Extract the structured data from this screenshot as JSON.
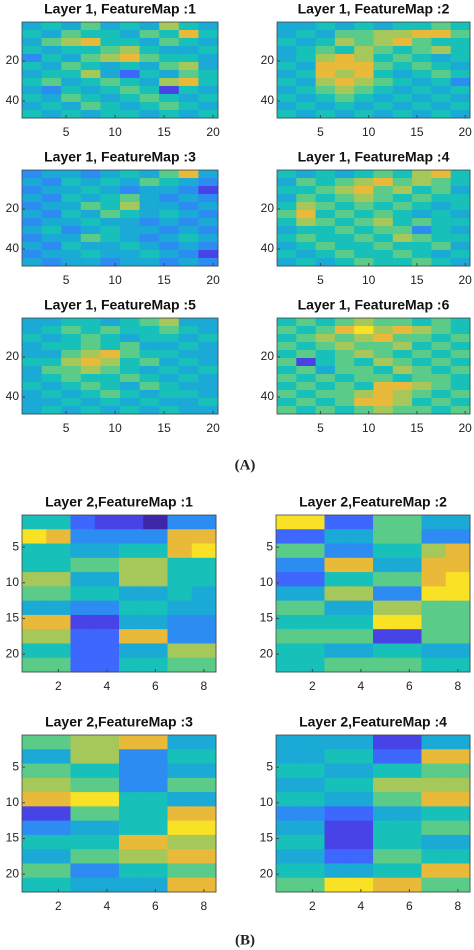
{
  "colormap": [
    "#3e26a8",
    "#4743e6",
    "#3e67fe",
    "#2d8cf2",
    "#1ba9d6",
    "#17c0b8",
    "#5acb89",
    "#a6c75a",
    "#e9ba3a",
    "#f9e125"
  ],
  "figure_labels": [
    "(A)",
    "(B)"
  ],
  "chart_data": [
    {
      "type": "heatmap",
      "title": "Layer 1, FeatureMap :1",
      "xlim": [
        0.5,
        20.5
      ],
      "ylim": [
        0.5,
        48.5
      ],
      "xticks": [
        5,
        10,
        15,
        20
      ],
      "yticks": [
        20,
        40
      ],
      "z": [
        [
          4,
          5,
          4,
          6,
          4,
          5,
          4,
          7,
          5,
          4
        ],
        [
          5,
          4,
          6,
          5,
          5,
          4,
          6,
          5,
          8,
          5
        ],
        [
          4,
          6,
          7,
          8,
          5,
          5,
          4,
          6,
          5,
          4
        ],
        [
          5,
          4,
          5,
          5,
          6,
          7,
          5,
          4,
          4,
          5
        ],
        [
          3,
          5,
          4,
          6,
          7,
          8,
          6,
          5,
          5,
          4
        ],
        [
          5,
          4,
          6,
          5,
          4,
          5,
          4,
          6,
          7,
          4
        ],
        [
          4,
          5,
          5,
          7,
          4,
          2,
          5,
          4,
          6,
          5
        ],
        [
          5,
          6,
          4,
          5,
          6,
          5,
          4,
          7,
          8,
          5
        ],
        [
          4,
          3,
          5,
          4,
          5,
          6,
          5,
          1,
          5,
          4
        ],
        [
          5,
          4,
          6,
          5,
          4,
          5,
          6,
          5,
          4,
          5
        ],
        [
          4,
          5,
          4,
          6,
          5,
          4,
          5,
          6,
          5,
          4
        ],
        [
          5,
          4,
          5,
          4,
          5,
          5,
          4,
          5,
          4,
          5
        ]
      ]
    },
    {
      "type": "heatmap",
      "title": "Layer 1, FeatureMap :2",
      "xlim": [
        0.5,
        20.5
      ],
      "ylim": [
        0.5,
        48.5
      ],
      "xticks": [
        5,
        10,
        15,
        20
      ],
      "yticks": [
        20,
        40
      ],
      "z": [
        [
          4,
          4,
          5,
          4,
          5,
          4,
          5,
          5,
          6,
          5
        ],
        [
          4,
          5,
          4,
          6,
          6,
          7,
          7,
          8,
          8,
          6
        ],
        [
          5,
          4,
          5,
          7,
          6,
          7,
          8,
          6,
          5,
          5
        ],
        [
          4,
          5,
          6,
          5,
          7,
          6,
          5,
          6,
          7,
          5
        ],
        [
          4,
          5,
          7,
          8,
          7,
          5,
          6,
          5,
          4,
          5
        ],
        [
          5,
          4,
          8,
          8,
          8,
          6,
          5,
          6,
          5,
          4
        ],
        [
          4,
          5,
          8,
          7,
          8,
          5,
          4,
          5,
          6,
          5
        ],
        [
          5,
          4,
          7,
          8,
          7,
          6,
          5,
          4,
          5,
          3
        ],
        [
          4,
          5,
          6,
          7,
          6,
          5,
          4,
          5,
          4,
          5
        ],
        [
          5,
          4,
          5,
          6,
          5,
          4,
          5,
          4,
          5,
          4
        ],
        [
          4,
          5,
          4,
          5,
          4,
          5,
          4,
          5,
          4,
          5
        ],
        [
          5,
          4,
          5,
          4,
          5,
          4,
          5,
          4,
          5,
          4
        ]
      ]
    },
    {
      "type": "heatmap",
      "title": "Layer 1, FeatureMap :3",
      "xlim": [
        0.5,
        20.5
      ],
      "ylim": [
        0.5,
        48.5
      ],
      "xticks": [
        5,
        10,
        15,
        20
      ],
      "yticks": [
        20,
        40
      ],
      "z": [
        [
          3,
          4,
          4,
          3,
          4,
          5,
          4,
          6,
          8,
          4
        ],
        [
          4,
          3,
          5,
          4,
          5,
          4,
          6,
          5,
          4,
          3
        ],
        [
          3,
          4,
          4,
          5,
          4,
          3,
          4,
          4,
          3,
          1
        ],
        [
          4,
          3,
          5,
          4,
          5,
          6,
          4,
          3,
          4,
          3
        ],
        [
          3,
          4,
          4,
          6,
          5,
          7,
          4,
          4,
          3,
          4
        ],
        [
          4,
          3,
          5,
          4,
          6,
          5,
          4,
          5,
          4,
          3
        ],
        [
          3,
          4,
          4,
          5,
          4,
          4,
          3,
          4,
          3,
          4
        ],
        [
          4,
          5,
          3,
          4,
          5,
          4,
          4,
          3,
          4,
          3
        ],
        [
          3,
          4,
          4,
          6,
          5,
          4,
          3,
          4,
          5,
          4
        ],
        [
          4,
          3,
          5,
          4,
          4,
          5,
          4,
          3,
          4,
          3
        ],
        [
          3,
          4,
          4,
          5,
          4,
          4,
          5,
          4,
          3,
          1
        ],
        [
          4,
          3,
          4,
          4,
          3,
          4,
          4,
          3,
          4,
          3
        ]
      ]
    },
    {
      "type": "heatmap",
      "title": "Layer 1, FeatureMap :4",
      "xlim": [
        0.5,
        20.5
      ],
      "ylim": [
        0.5,
        48.5
      ],
      "xticks": [
        5,
        10,
        15,
        20
      ],
      "yticks": [
        20,
        40
      ],
      "z": [
        [
          5,
          4,
          5,
          4,
          5,
          6,
          5,
          7,
          8,
          5
        ],
        [
          4,
          6,
          5,
          6,
          7,
          8,
          6,
          7,
          6,
          5
        ],
        [
          5,
          5,
          6,
          7,
          8,
          6,
          7,
          5,
          6,
          4
        ],
        [
          4,
          6,
          5,
          6,
          7,
          6,
          5,
          6,
          5,
          5
        ],
        [
          5,
          7,
          6,
          5,
          6,
          5,
          6,
          5,
          4,
          5
        ],
        [
          6,
          8,
          5,
          6,
          5,
          6,
          5,
          4,
          5,
          4
        ],
        [
          5,
          7,
          6,
          5,
          6,
          7,
          5,
          6,
          5,
          5
        ],
        [
          4,
          5,
          5,
          6,
          5,
          6,
          6,
          3,
          5,
          4
        ],
        [
          5,
          6,
          5,
          5,
          6,
          5,
          7,
          6,
          5,
          5
        ],
        [
          4,
          5,
          6,
          5,
          5,
          6,
          5,
          5,
          6,
          4
        ],
        [
          5,
          4,
          5,
          6,
          5,
          5,
          6,
          5,
          4,
          5
        ],
        [
          4,
          5,
          4,
          5,
          6,
          5,
          5,
          6,
          5,
          4
        ]
      ]
    },
    {
      "type": "heatmap",
      "title": "Layer 1, FeatureMap :5",
      "xlim": [
        0.5,
        20.5
      ],
      "ylim": [
        0.5,
        48.5
      ],
      "xticks": [
        5,
        10,
        15,
        20
      ],
      "yticks": [
        20,
        40
      ],
      "z": [
        [
          4,
          4,
          5,
          5,
          4,
          5,
          6,
          7,
          4,
          4
        ],
        [
          4,
          5,
          6,
          5,
          6,
          5,
          5,
          6,
          5,
          4
        ],
        [
          5,
          4,
          5,
          6,
          5,
          4,
          5,
          5,
          4,
          5
        ],
        [
          4,
          5,
          5,
          6,
          5,
          6,
          4,
          4,
          5,
          4
        ],
        [
          4,
          4,
          6,
          7,
          8,
          6,
          5,
          5,
          4,
          4
        ],
        [
          5,
          5,
          7,
          8,
          7,
          5,
          6,
          4,
          5,
          4
        ],
        [
          4,
          6,
          6,
          7,
          6,
          5,
          4,
          5,
          4,
          5
        ],
        [
          4,
          5,
          6,
          5,
          5,
          6,
          5,
          4,
          5,
          4
        ],
        [
          5,
          4,
          5,
          6,
          5,
          4,
          6,
          5,
          4,
          4
        ],
        [
          4,
          5,
          4,
          5,
          6,
          5,
          4,
          5,
          5,
          4
        ],
        [
          4,
          4,
          5,
          4,
          5,
          4,
          5,
          4,
          4,
          5
        ],
        [
          4,
          5,
          4,
          5,
          4,
          5,
          4,
          5,
          4,
          4
        ]
      ]
    },
    {
      "type": "heatmap",
      "title": "Layer 1, FeatureMap :6",
      "xlim": [
        0.5,
        20.5
      ],
      "ylim": [
        0.5,
        48.5
      ],
      "xticks": [
        5,
        10,
        15,
        20
      ],
      "yticks": [
        20,
        40
      ],
      "z": [
        [
          5,
          6,
          5,
          6,
          7,
          6,
          6,
          5,
          6,
          5
        ],
        [
          6,
          5,
          6,
          8,
          9,
          7,
          8,
          7,
          6,
          5
        ],
        [
          5,
          6,
          7,
          6,
          7,
          8,
          6,
          6,
          5,
          6
        ],
        [
          6,
          5,
          6,
          7,
          6,
          6,
          7,
          5,
          6,
          5
        ],
        [
          5,
          6,
          5,
          6,
          7,
          6,
          5,
          6,
          5,
          6
        ],
        [
          6,
          1,
          5,
          6,
          5,
          7,
          6,
          5,
          6,
          5
        ],
        [
          5,
          6,
          4,
          6,
          6,
          5,
          7,
          6,
          5,
          6
        ],
        [
          6,
          5,
          6,
          5,
          6,
          6,
          5,
          6,
          6,
          5
        ],
        [
          5,
          6,
          5,
          6,
          5,
          8,
          8,
          7,
          6,
          5
        ],
        [
          6,
          5,
          6,
          6,
          7,
          8,
          7,
          6,
          5,
          6
        ],
        [
          5,
          6,
          5,
          6,
          8,
          8,
          7,
          5,
          6,
          5
        ],
        [
          6,
          5,
          6,
          5,
          6,
          7,
          6,
          6,
          5,
          6
        ]
      ]
    },
    {
      "type": "heatmap",
      "title": "Layer 2,FeatureMap :1",
      "xlim": [
        0.5,
        8.5
      ],
      "ylim": [
        0.5,
        22.5
      ],
      "xticks": [
        2,
        4,
        6,
        8
      ],
      "yticks": [
        5,
        10,
        15,
        20
      ],
      "z": [
        [
          5,
          5,
          2,
          1,
          1,
          0,
          3,
          3
        ],
        [
          9,
          8,
          3,
          3,
          3,
          3,
          8,
          8
        ],
        [
          5,
          5,
          4,
          4,
          5,
          5,
          8,
          9
        ],
        [
          5,
          5,
          6,
          6,
          7,
          7,
          5,
          5
        ],
        [
          7,
          7,
          4,
          4,
          7,
          7,
          5,
          5
        ],
        [
          6,
          6,
          5,
          5,
          4,
          4,
          5,
          4
        ],
        [
          4,
          4,
          3,
          3,
          5,
          5,
          4,
          4
        ],
        [
          8,
          8,
          1,
          1,
          4,
          4,
          3,
          3
        ],
        [
          7,
          7,
          2,
          2,
          8,
          8,
          3,
          3
        ],
        [
          5,
          5,
          2,
          2,
          4,
          4,
          7,
          7
        ],
        [
          6,
          6,
          2,
          2,
          5,
          5,
          6,
          6
        ]
      ]
    },
    {
      "type": "heatmap",
      "title": "Layer 2,FeatureMap :2",
      "xlim": [
        0.5,
        8.5
      ],
      "ylim": [
        0.5,
        22.5
      ],
      "xticks": [
        2,
        4,
        6,
        8
      ],
      "yticks": [
        5,
        10,
        15,
        20
      ],
      "z": [
        [
          9,
          9,
          2,
          2,
          6,
          6,
          4,
          4
        ],
        [
          2,
          2,
          4,
          4,
          6,
          6,
          3,
          3
        ],
        [
          6,
          6,
          3,
          3,
          5,
          5,
          7,
          8
        ],
        [
          3,
          3,
          8,
          8,
          4,
          4,
          8,
          8
        ],
        [
          2,
          2,
          5,
          5,
          6,
          6,
          8,
          9
        ],
        [
          4,
          4,
          7,
          7,
          3,
          3,
          9,
          9
        ],
        [
          6,
          6,
          4,
          4,
          7,
          7,
          6,
          6
        ],
        [
          5,
          5,
          5,
          5,
          9,
          9,
          6,
          6
        ],
        [
          6,
          6,
          6,
          6,
          1,
          1,
          6,
          6
        ],
        [
          5,
          5,
          4,
          4,
          5,
          5,
          4,
          4
        ],
        [
          5,
          5,
          6,
          6,
          6,
          6,
          5,
          5
        ]
      ]
    },
    {
      "type": "heatmap",
      "title": "Layer 2,FeatureMap :3",
      "xlim": [
        0.5,
        8.5
      ],
      "ylim": [
        0.5,
        22.5
      ],
      "xticks": [
        2,
        4,
        6,
        8
      ],
      "yticks": [
        5,
        10,
        15,
        20
      ],
      "z": [
        [
          6,
          6,
          7,
          7,
          8,
          8,
          4,
          4
        ],
        [
          4,
          4,
          7,
          7,
          3,
          3,
          5,
          5
        ],
        [
          6,
          6,
          5,
          5,
          3,
          3,
          4,
          4
        ],
        [
          7,
          7,
          6,
          6,
          3,
          3,
          6,
          6
        ],
        [
          8,
          8,
          9,
          9,
          5,
          5,
          4,
          4
        ],
        [
          1,
          1,
          6,
          6,
          5,
          5,
          8,
          8
        ],
        [
          3,
          3,
          4,
          4,
          5,
          5,
          9,
          9
        ],
        [
          5,
          5,
          5,
          5,
          8,
          8,
          7,
          7
        ],
        [
          4,
          4,
          6,
          6,
          7,
          7,
          8,
          8
        ],
        [
          6,
          6,
          3,
          3,
          5,
          5,
          6,
          6
        ],
        [
          5,
          5,
          4,
          4,
          4,
          4,
          8,
          8
        ]
      ]
    },
    {
      "type": "heatmap",
      "title": "Layer 2,FeatureMap :4",
      "xlim": [
        0.5,
        8.5
      ],
      "ylim": [
        0.5,
        22.5
      ],
      "xticks": [
        2,
        4,
        6,
        8
      ],
      "yticks": [
        5,
        10,
        15,
        20
      ],
      "z": [
        [
          4,
          4,
          4,
          4,
          1,
          1,
          4,
          4
        ],
        [
          4,
          4,
          5,
          5,
          2,
          2,
          8,
          8
        ],
        [
          5,
          5,
          4,
          4,
          5,
          5,
          6,
          6
        ],
        [
          4,
          4,
          5,
          5,
          7,
          7,
          7,
          7
        ],
        [
          5,
          5,
          4,
          4,
          6,
          6,
          8,
          8
        ],
        [
          3,
          3,
          2,
          2,
          4,
          4,
          5,
          5
        ],
        [
          4,
          4,
          1,
          1,
          5,
          5,
          6,
          6
        ],
        [
          5,
          5,
          1,
          1,
          5,
          5,
          4,
          4
        ],
        [
          4,
          4,
          2,
          2,
          6,
          6,
          5,
          5
        ],
        [
          5,
          5,
          4,
          4,
          5,
          5,
          8,
          8
        ],
        [
          6,
          6,
          9,
          9,
          8,
          8,
          6,
          6
        ]
      ]
    }
  ]
}
